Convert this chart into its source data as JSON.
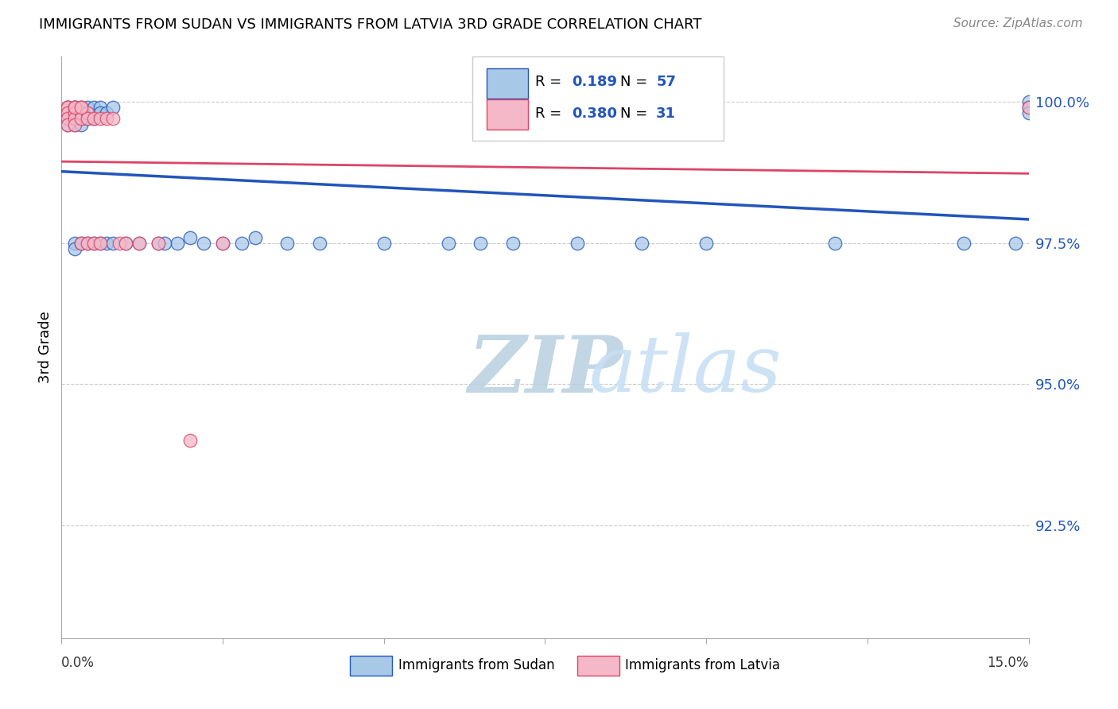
{
  "title": "IMMIGRANTS FROM SUDAN VS IMMIGRANTS FROM LATVIA 3RD GRADE CORRELATION CHART",
  "source": "Source: ZipAtlas.com",
  "ylabel": "3rd Grade",
  "y_tick_labels": [
    "100.0%",
    "97.5%",
    "95.0%",
    "92.5%"
  ],
  "y_tick_values": [
    1.0,
    0.975,
    0.95,
    0.925
  ],
  "x_range": [
    0.0,
    0.15
  ],
  "y_range": [
    0.905,
    1.008
  ],
  "sudan_R": 0.189,
  "sudan_N": 57,
  "latvia_R": 0.38,
  "latvia_N": 31,
  "sudan_color": "#a8c8e8",
  "latvia_color": "#f5b8c8",
  "sudan_line_color": "#2255bb",
  "latvia_line_color": "#dd4466",
  "sudan_points_x": [
    0.001,
    0.001,
    0.001,
    0.001,
    0.001,
    0.001,
    0.002,
    0.002,
    0.002,
    0.002,
    0.002,
    0.002,
    0.002,
    0.003,
    0.003,
    0.003,
    0.003,
    0.003,
    0.004,
    0.004,
    0.004,
    0.004,
    0.005,
    0.005,
    0.005,
    0.006,
    0.006,
    0.006,
    0.007,
    0.007,
    0.008,
    0.008,
    0.01,
    0.012,
    0.015,
    0.018,
    0.02,
    0.025,
    0.03,
    0.035,
    0.04,
    0.05,
    0.06,
    0.065,
    0.08,
    0.1,
    0.12,
    0.14,
    0.148,
    0.15,
    0.15,
    0.15,
    0.07,
    0.09,
    0.028,
    0.022,
    0.016
  ],
  "sudan_points_y": [
    0.999,
    0.999,
    0.998,
    0.998,
    0.997,
    0.996,
    0.999,
    0.999,
    0.998,
    0.997,
    0.996,
    0.975,
    0.974,
    0.999,
    0.998,
    0.997,
    0.996,
    0.975,
    0.999,
    0.998,
    0.997,
    0.975,
    0.999,
    0.997,
    0.975,
    0.999,
    0.998,
    0.975,
    0.998,
    0.975,
    0.999,
    0.975,
    0.975,
    0.975,
    0.975,
    0.975,
    0.976,
    0.975,
    0.976,
    0.975,
    0.975,
    0.975,
    0.975,
    0.975,
    0.975,
    0.975,
    0.975,
    0.975,
    0.975,
    1.0,
    0.999,
    0.998,
    0.975,
    0.975,
    0.975,
    0.975,
    0.975
  ],
  "latvia_points_x": [
    0.001,
    0.001,
    0.001,
    0.001,
    0.001,
    0.002,
    0.002,
    0.002,
    0.002,
    0.003,
    0.003,
    0.003,
    0.003,
    0.004,
    0.004,
    0.004,
    0.005,
    0.005,
    0.006,
    0.006,
    0.007,
    0.008,
    0.009,
    0.01,
    0.012,
    0.015,
    0.02,
    0.025,
    0.002,
    0.003,
    0.15
  ],
  "latvia_points_y": [
    0.999,
    0.999,
    0.998,
    0.997,
    0.996,
    0.999,
    0.998,
    0.997,
    0.996,
    0.999,
    0.998,
    0.997,
    0.975,
    0.998,
    0.997,
    0.975,
    0.997,
    0.975,
    0.997,
    0.975,
    0.997,
    0.997,
    0.975,
    0.975,
    0.975,
    0.975,
    0.94,
    0.975,
    0.999,
    0.999,
    0.999
  ],
  "watermark_zip": "ZIP",
  "watermark_atlas": "atlas",
  "watermark_color": "#c8e0f4"
}
